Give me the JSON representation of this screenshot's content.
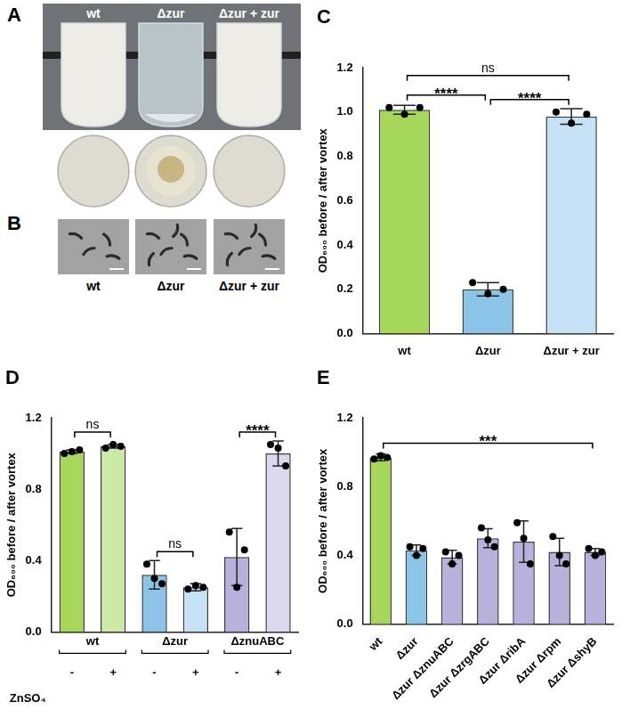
{
  "panels": [
    {
      "panel": "A",
      "labels": [
        "wt",
        "Δzur",
        "Δzur + zur"
      ]
    },
    {
      "panel": "B",
      "labels": [
        "wt",
        "Δzur",
        "Δzur + zur"
      ]
    }
  ],
  "chart_data": [
    {
      "panel": "C",
      "type": "bar",
      "categories": [
        "wt",
        "Δzur",
        "Δzur + zur"
      ],
      "values": [
        1.01,
        0.2,
        0.98
      ],
      "errors": [
        0.02,
        0.03,
        0.035
      ],
      "replicates": [
        [
          1.02,
          0.99,
          1.02
        ],
        [
          0.23,
          0.18,
          0.2
        ],
        [
          1.0,
          0.95,
          0.99
        ]
      ],
      "colors": [
        "#a6d75b",
        "#8cc4e8",
        "#c6e2f4"
      ],
      "y_label": "OD₆₀₀ before / after vortex",
      "ylim": [
        0,
        1.2
      ],
      "yticks": [
        {
          "value": 0,
          "label": "0.0"
        },
        {
          "value": 0.2,
          "label": "0.2"
        },
        {
          "value": 0.4,
          "label": "0.4"
        },
        {
          "value": 0.6,
          "label": "0.6"
        },
        {
          "value": 0.8,
          "label": "0.8"
        },
        {
          "value": 1.0,
          "label": "1.0"
        },
        {
          "value": 1.2,
          "label": "1.2"
        }
      ],
      "grid": false,
      "annotations": [
        {
          "text": "ns",
          "between": [
            0,
            2
          ]
        },
        {
          "text": "****",
          "between": [
            0,
            1
          ]
        },
        {
          "text": "****",
          "between": [
            1,
            2
          ]
        }
      ]
    },
    {
      "panel": "D",
      "type": "bar",
      "categories": [
        "-",
        "+",
        "-",
        "+",
        "-",
        "+"
      ],
      "groups": [
        "wt",
        "wt",
        "Δzur",
        "Δzur",
        "ΔznuABC",
        "ΔznuABC"
      ],
      "condition_label": "ZnSO₄",
      "values": [
        1.01,
        1.04,
        0.32,
        0.25,
        0.42,
        1.0
      ],
      "errors": [
        0.01,
        0.01,
        0.08,
        0.02,
        0.16,
        0.07
      ],
      "replicates": [
        [
          1.0,
          1.01,
          1.02
        ],
        [
          1.03,
          1.05,
          1.04
        ],
        [
          0.38,
          0.3,
          0.27
        ],
        [
          0.24,
          0.26,
          0.25
        ],
        [
          0.56,
          0.25,
          0.46
        ],
        [
          1.05,
          1.03,
          0.93
        ]
      ],
      "colors": [
        "#a6d75b",
        "#cde9a8",
        "#8cc4e8",
        "#c6e2f4",
        "#b7b1dc",
        "#dcd8ef"
      ],
      "y_label": "OD₆₀₀ before / after vortex",
      "ylim": [
        0,
        1.2
      ],
      "yticks": [
        {
          "value": 0,
          "label": "0.0"
        },
        {
          "value": 0.4,
          "label": "0.4"
        },
        {
          "value": 0.8,
          "label": "0.8"
        },
        {
          "value": 1.2,
          "label": "1.2"
        }
      ],
      "grid": false,
      "annotations": [
        {
          "text": "ns",
          "between": [
            0,
            1
          ]
        },
        {
          "text": "ns",
          "between": [
            2,
            3
          ]
        },
        {
          "text": "****",
          "between": [
            4,
            5
          ]
        }
      ]
    },
    {
      "panel": "E",
      "type": "bar",
      "categories": [
        "wt",
        "Δzur",
        "Δzur ΔznuABC",
        "Δzur ΔzrgABC",
        "Δzur ΔribA",
        "Δzur Δrpm",
        "Δzur ΔshyB"
      ],
      "values": [
        0.97,
        0.43,
        0.39,
        0.5,
        0.48,
        0.42,
        0.42
      ],
      "errors": [
        0.02,
        0.03,
        0.04,
        0.055,
        0.12,
        0.08,
        0.02
      ],
      "replicates": [
        [
          0.96,
          0.98,
          0.97
        ],
        [
          0.45,
          0.4,
          0.44
        ],
        [
          0.42,
          0.35,
          0.4
        ],
        [
          0.56,
          0.49,
          0.45
        ],
        [
          0.59,
          0.5,
          0.35
        ],
        [
          0.51,
          0.4,
          0.35
        ],
        [
          0.44,
          0.4,
          0.42
        ]
      ],
      "colors": [
        "#a6d75b",
        "#8cc4e8",
        "#b7b1dc",
        "#b7b1dc",
        "#b7b1dc",
        "#b7b1dc",
        "#b7b1dc"
      ],
      "y_label": "OD₆₀₀ before / after vortex",
      "ylim": [
        0,
        1.2
      ],
      "yticks": [
        {
          "value": 0,
          "label": "0.0"
        },
        {
          "value": 0.4,
          "label": "0.4"
        },
        {
          "value": 0.8,
          "label": "0.8"
        },
        {
          "value": 1.2,
          "label": "1.2"
        }
      ],
      "grid": false,
      "annotations": [
        {
          "text": "***",
          "between": [
            0,
            6
          ]
        }
      ]
    }
  ]
}
